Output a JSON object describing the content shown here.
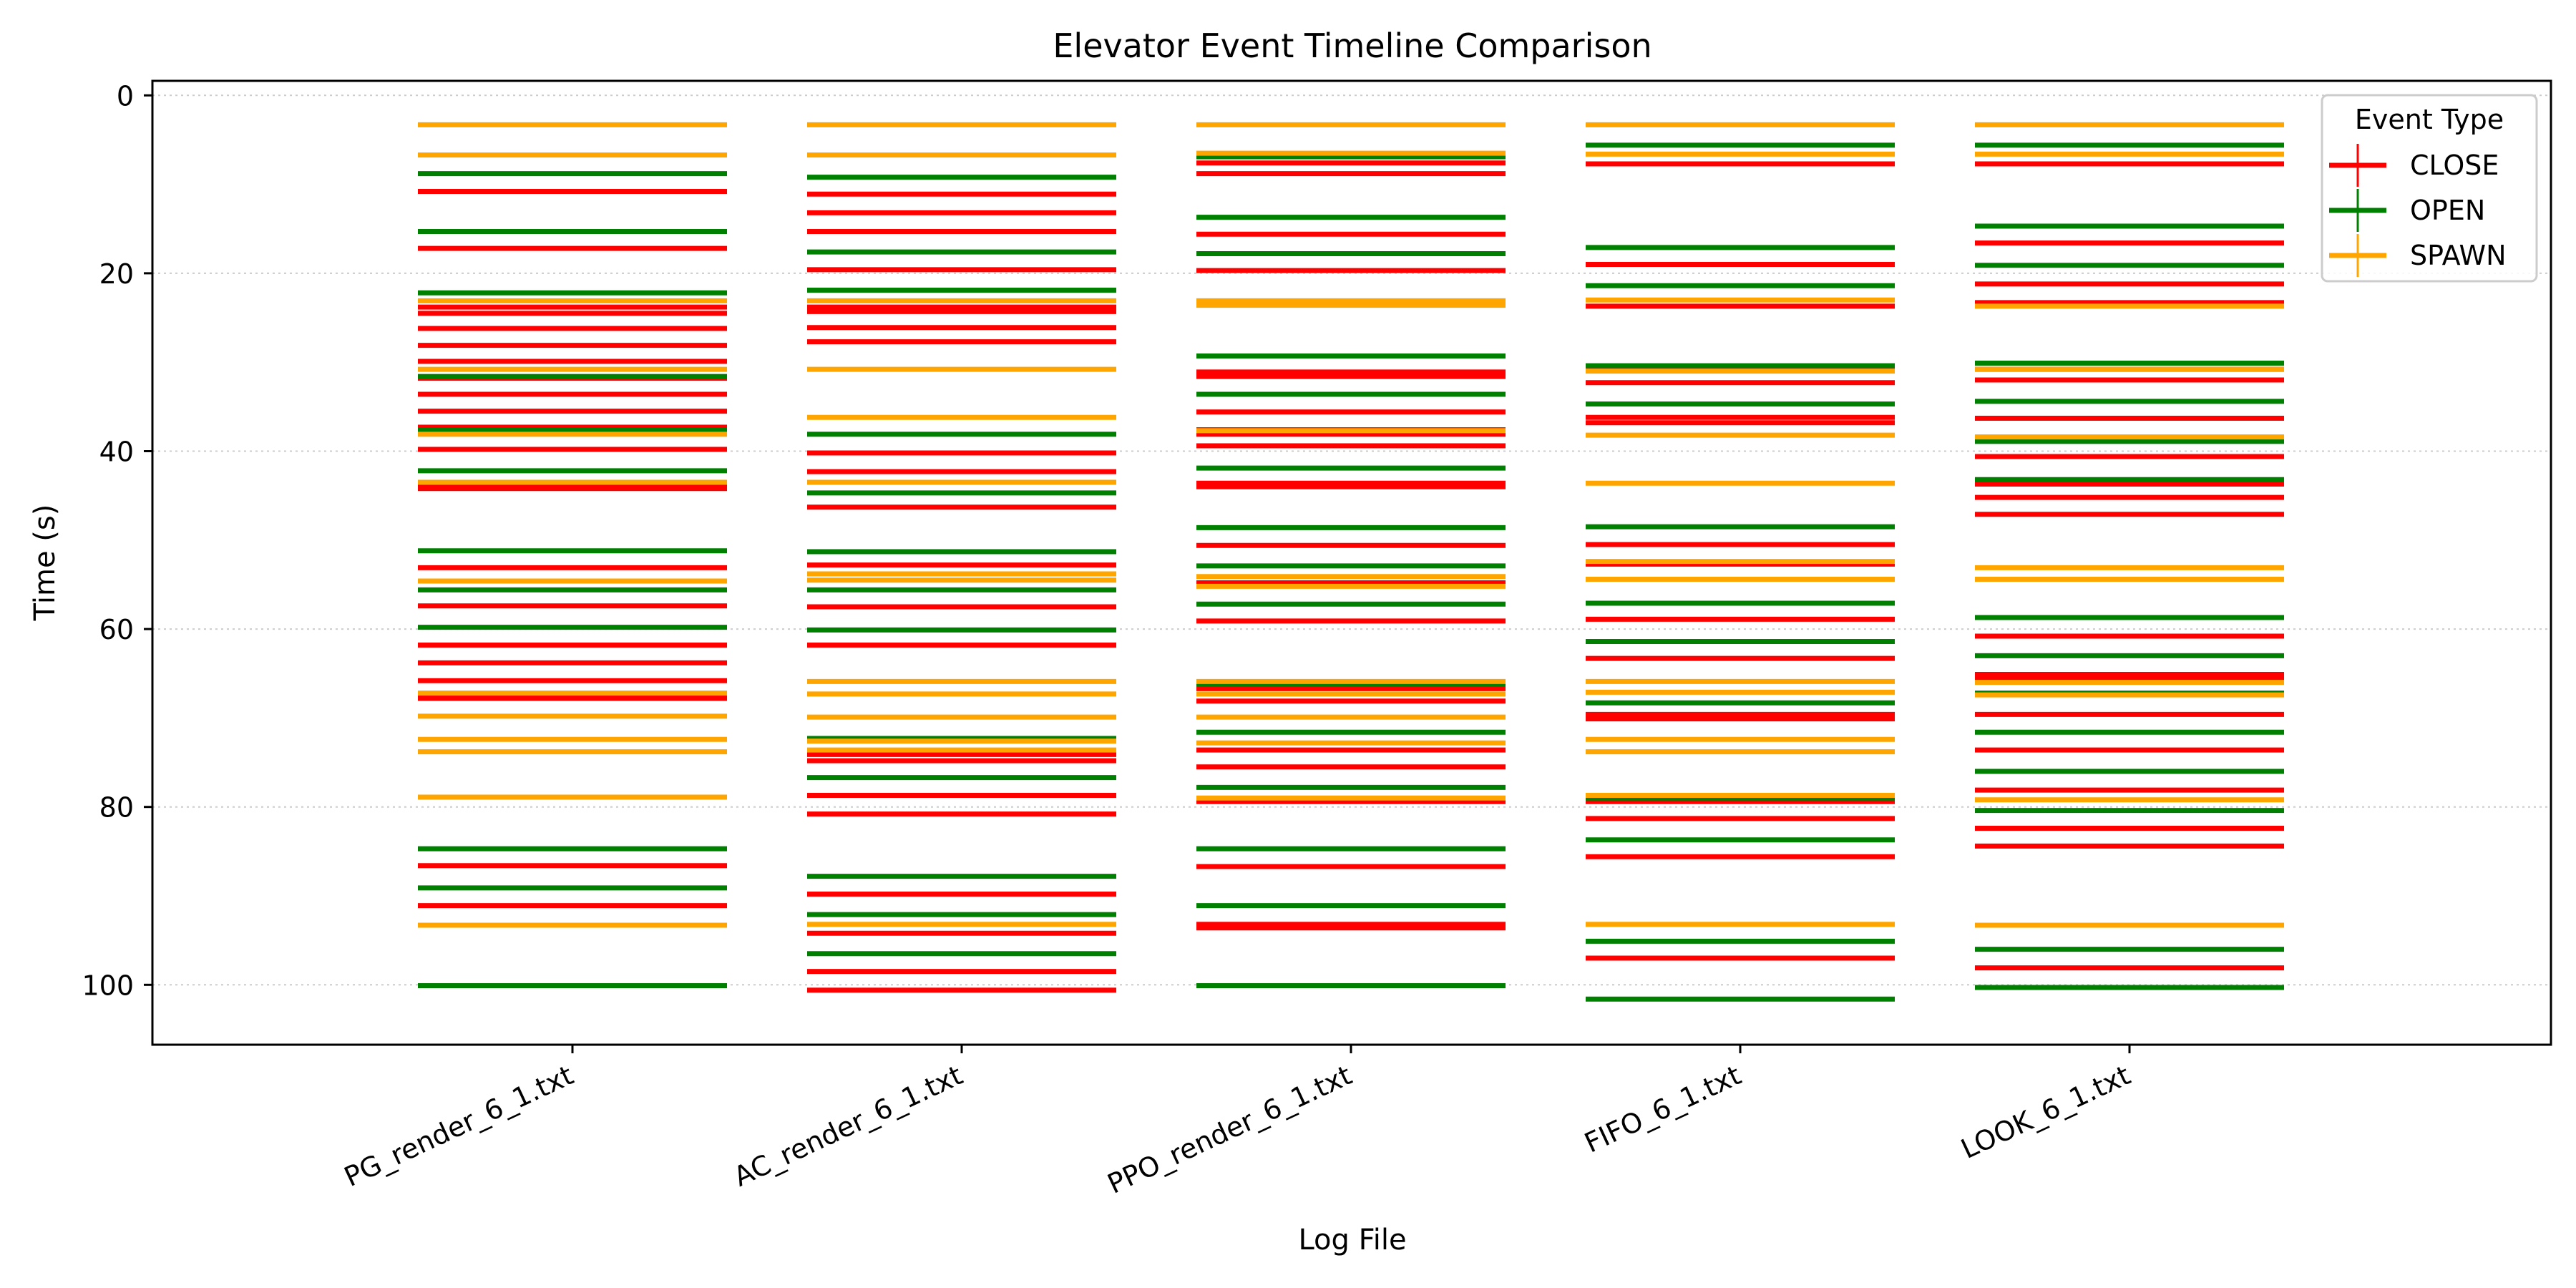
{
  "chart_data": {
    "type": "event_timeline",
    "title": "Elevator Event Timeline Comparison",
    "xlabel": "Log File",
    "ylabel": "Time (s)",
    "ylim": [
      106.5,
      -1.5
    ],
    "y_inverted": true,
    "y_ticks": [
      0,
      20,
      40,
      60,
      80,
      100
    ],
    "grid": "horizontal dotted",
    "legend": {
      "title": "Event Type",
      "position": "top-right",
      "entries": [
        "CLOSE",
        "OPEN",
        "SPAWN"
      ]
    },
    "colors": {
      "CLOSE": "#ff0000",
      "OPEN": "#008000",
      "SPAWN": "#ffa500"
    },
    "categories": [
      "PG_render_6_1.txt",
      "AC_render_6_1.txt",
      "PPO_render_6_1.txt",
      "FIFO_6_1.txt",
      "LOOK_6_1.txt"
    ],
    "series": [
      {
        "name": "CLOSE",
        "events": [
          [
            10.8,
            17.2,
            23.8,
            24.5,
            26.2,
            28.1,
            29.9,
            31.8,
            33.6,
            35.5,
            37.3,
            39.8,
            43.7,
            44.2,
            53.1,
            57.4,
            61.8,
            63.8,
            65.8,
            67.5,
            67.8,
            86.6,
            91.1
          ],
          [
            11.1,
            13.2,
            15.3,
            19.6,
            23.8,
            24.3,
            26.1,
            27.7,
            40.2,
            42.3,
            46.3,
            52.8,
            57.5,
            61.8,
            74.1,
            74.8,
            78.7,
            80.8,
            89.8,
            94.2,
            98.5,
            100.6
          ],
          [
            7.6,
            8.8,
            15.6,
            19.7,
            31.1,
            31.6,
            35.6,
            37.6,
            38.1,
            39.4,
            43.6,
            44.0,
            50.6,
            54.8,
            59.1,
            66.7,
            68.1,
            73.6,
            75.5,
            79.4,
            86.7,
            93.2,
            93.6
          ],
          [
            7.7,
            19.0,
            23.7,
            30.8,
            32.3,
            36.2,
            36.8,
            50.5,
            52.7,
            58.9,
            63.3,
            69.6,
            70.1,
            79.4,
            81.3,
            85.6,
            97.0
          ],
          [
            7.7,
            16.6,
            21.2,
            23.3,
            30.8,
            32.0,
            36.3,
            40.6,
            43.7,
            45.2,
            47.1,
            60.8,
            65.1,
            65.6,
            69.6,
            73.6,
            78.1,
            82.4,
            84.4,
            98.1
          ]
        ]
      },
      {
        "name": "OPEN",
        "events": [
          [
            8.8,
            15.3,
            22.2,
            31.6,
            37.6,
            42.2,
            51.2,
            55.6,
            59.8,
            84.7,
            89.1,
            100.1
          ],
          [
            9.2,
            17.6,
            21.9,
            38.1,
            44.7,
            51.3,
            55.6,
            60.1,
            72.3,
            76.7,
            87.8,
            92.1,
            96.5
          ],
          [
            6.9,
            13.7,
            17.8,
            29.3,
            33.6,
            41.9,
            48.6,
            52.9,
            57.2,
            66.2,
            71.6,
            77.8,
            84.7,
            91.1,
            100.1
          ],
          [
            5.6,
            17.1,
            21.4,
            30.4,
            34.7,
            48.5,
            57.1,
            61.4,
            68.3,
            79.0,
            83.7,
            95.1,
            101.6
          ],
          [
            5.6,
            14.7,
            19.1,
            30.1,
            34.4,
            38.9,
            43.2,
            58.7,
            63.0,
            67.2,
            71.6,
            76.0,
            80.4,
            96.0,
            100.3
          ]
        ]
      },
      {
        "name": "SPAWN",
        "events": [
          [
            3.3,
            6.7,
            23.1,
            30.8,
            38.1,
            43.5,
            54.6,
            67.2,
            69.8,
            72.4,
            73.8,
            78.9,
            93.3
          ],
          [
            3.3,
            6.7,
            23.1,
            30.8,
            36.2,
            43.5,
            53.8,
            54.5,
            65.9,
            67.3,
            69.9,
            72.6,
            73.6,
            93.2
          ],
          [
            3.3,
            6.5,
            23.1,
            23.6,
            37.7,
            54.1,
            55.2,
            65.9,
            67.3,
            69.9,
            72.8,
            79.0
          ],
          [
            3.3,
            6.6,
            23.0,
            31.0,
            38.2,
            43.6,
            52.4,
            54.4,
            65.9,
            67.1,
            72.4,
            73.8,
            78.7,
            93.2
          ],
          [
            3.3,
            6.6,
            23.7,
            30.8,
            38.4,
            53.1,
            54.4,
            66.0,
            67.4,
            79.2,
            93.3
          ]
        ]
      }
    ]
  }
}
